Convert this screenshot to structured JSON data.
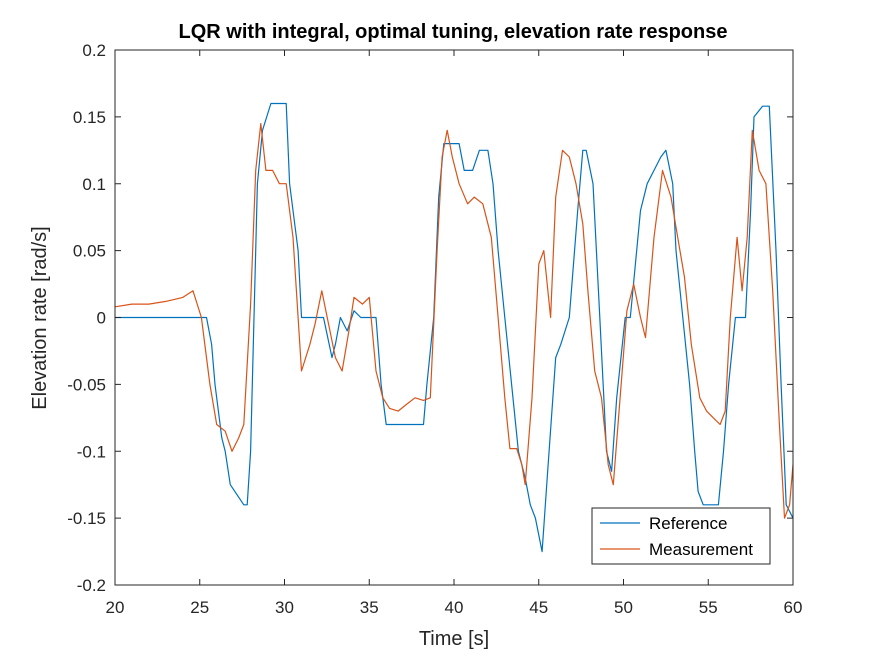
{
  "chart_data": {
    "type": "line",
    "title": "LQR with integral, optimal tuning, elevation rate response",
    "xlabel": "Time [s]",
    "ylabel": "Elevation rate [rad/s]",
    "xlim": [
      20,
      60
    ],
    "ylim": [
      -0.2,
      0.2
    ],
    "xticks": [
      20,
      25,
      30,
      35,
      40,
      45,
      50,
      55,
      60
    ],
    "xtick_labels": [
      "20",
      "25",
      "30",
      "35",
      "40",
      "45",
      "50",
      "55",
      "60"
    ],
    "yticks": [
      -0.2,
      -0.15,
      -0.1,
      -0.05,
      0,
      0.05,
      0.1,
      0.15,
      0.2
    ],
    "ytick_labels": [
      "-0.2",
      "-0.15",
      "-0.1",
      "-0.05",
      "0",
      "0.05",
      "0.1",
      "0.15",
      "0.2"
    ],
    "grid": false,
    "legend_position": "bottom-right",
    "series": [
      {
        "name": "Reference",
        "color": "#0072BD",
        "x": [
          20,
          25.4,
          25.7,
          25.9,
          26.3,
          26.5,
          26.8,
          27.6,
          27.8,
          28.0,
          28.1,
          28.4,
          28.7,
          29.2,
          29.4,
          30.1,
          30.3,
          30.8,
          31.0,
          32.3,
          32.8,
          33.0,
          33.3,
          33.7,
          34.1,
          34.5,
          35.4,
          35.7,
          36.0,
          38.2,
          38.4,
          38.8,
          39.1,
          39.4,
          40.3,
          40.6,
          41.1,
          41.5,
          42.0,
          42.3,
          42.6,
          43.0,
          43.4,
          43.8,
          44.2,
          44.5,
          44.8,
          45.2,
          45.5,
          46.0,
          46.3,
          46.8,
          47.3,
          47.6,
          47.8,
          48.2,
          48.6,
          49.0,
          49.3,
          49.6,
          50.1,
          50.4,
          51.0,
          51.4,
          51.8,
          52.2,
          52.5,
          52.9,
          53.1,
          53.5,
          53.9,
          54.2,
          54.4,
          54.7,
          55.2,
          55.6,
          55.9,
          56.2,
          56.6,
          56.9,
          57.2,
          57.5,
          57.7,
          58.2,
          58.6,
          59.0,
          59.3,
          59.6,
          60.0
        ],
        "y": [
          0.0,
          0.0,
          -0.02,
          -0.05,
          -0.09,
          -0.1,
          -0.125,
          -0.14,
          -0.14,
          -0.1,
          -0.05,
          0.1,
          0.14,
          0.16,
          0.16,
          0.16,
          0.1,
          0.05,
          0.0,
          0.0,
          -0.03,
          -0.02,
          0.0,
          -0.01,
          0.005,
          0.0,
          0.0,
          -0.05,
          -0.08,
          -0.08,
          -0.05,
          0.0,
          0.09,
          0.13,
          0.13,
          0.11,
          0.11,
          0.125,
          0.125,
          0.1,
          0.05,
          0.0,
          -0.05,
          -0.1,
          -0.12,
          -0.14,
          -0.15,
          -0.175,
          -0.12,
          -0.03,
          -0.02,
          0.0,
          0.08,
          0.125,
          0.125,
          0.1,
          0.0,
          -0.1,
          -0.115,
          -0.06,
          0.0,
          0.0,
          0.08,
          0.1,
          0.11,
          0.12,
          0.125,
          0.1,
          0.05,
          0.0,
          -0.05,
          -0.1,
          -0.13,
          -0.14,
          -0.14,
          -0.14,
          -0.1,
          -0.05,
          0.0,
          0.0,
          0.0,
          0.08,
          0.15,
          0.158,
          0.158,
          0.05,
          -0.05,
          -0.14,
          -0.15
        ]
      },
      {
        "name": "Measurement",
        "color": "#D95319",
        "x": [
          20,
          21,
          22,
          23,
          24,
          24.6,
          25.1,
          25.6,
          26.0,
          26.5,
          26.9,
          27.3,
          27.6,
          28.0,
          28.3,
          28.6,
          28.9,
          29.3,
          29.7,
          30.1,
          30.5,
          31.0,
          31.5,
          31.8,
          32.2,
          32.6,
          33.0,
          33.4,
          33.8,
          34.1,
          34.6,
          35.0,
          35.4,
          35.8,
          36.2,
          36.7,
          37.2,
          37.7,
          38.2,
          38.6,
          39.0,
          39.3,
          39.6,
          39.9,
          40.3,
          40.8,
          41.2,
          41.7,
          42.2,
          42.6,
          43.0,
          43.3,
          43.7,
          44.0,
          44.2,
          44.6,
          45.0,
          45.3,
          45.7,
          46.0,
          46.4,
          46.8,
          47.2,
          47.6,
          47.9,
          48.3,
          48.7,
          49.1,
          49.4,
          49.8,
          50.2,
          50.6,
          51.0,
          51.3,
          51.8,
          52.3,
          52.8,
          53.2,
          53.6,
          54.0,
          54.5,
          54.9,
          55.3,
          55.7,
          56.0,
          56.3,
          56.7,
          57.0,
          57.3,
          57.6,
          58.0,
          58.4,
          58.8,
          59.2,
          59.5,
          59.8,
          60.0
        ],
        "y": [
          0.008,
          0.01,
          0.01,
          0.012,
          0.015,
          0.02,
          0.0,
          -0.05,
          -0.08,
          -0.085,
          -0.1,
          -0.09,
          -0.08,
          0.01,
          0.11,
          0.145,
          0.11,
          0.11,
          0.1,
          0.1,
          0.06,
          -0.04,
          -0.02,
          -0.005,
          0.02,
          -0.005,
          -0.03,
          -0.04,
          -0.01,
          0.015,
          0.01,
          0.015,
          -0.04,
          -0.06,
          -0.068,
          -0.07,
          -0.065,
          -0.06,
          -0.062,
          -0.06,
          0.05,
          0.12,
          0.14,
          0.12,
          0.1,
          0.085,
          0.09,
          0.085,
          0.06,
          0.0,
          -0.06,
          -0.098,
          -0.098,
          -0.11,
          -0.125,
          -0.06,
          0.04,
          0.05,
          0.0,
          0.09,
          0.125,
          0.12,
          0.1,
          0.07,
          0.02,
          -0.04,
          -0.06,
          -0.11,
          -0.125,
          -0.06,
          0.005,
          0.025,
          0.0,
          -0.015,
          0.06,
          0.11,
          0.09,
          0.06,
          0.03,
          -0.02,
          -0.06,
          -0.07,
          -0.075,
          -0.08,
          -0.07,
          0.0,
          0.06,
          0.02,
          0.06,
          0.14,
          0.11,
          0.1,
          0.02,
          -0.08,
          -0.15,
          -0.14,
          -0.11
        ]
      }
    ]
  }
}
